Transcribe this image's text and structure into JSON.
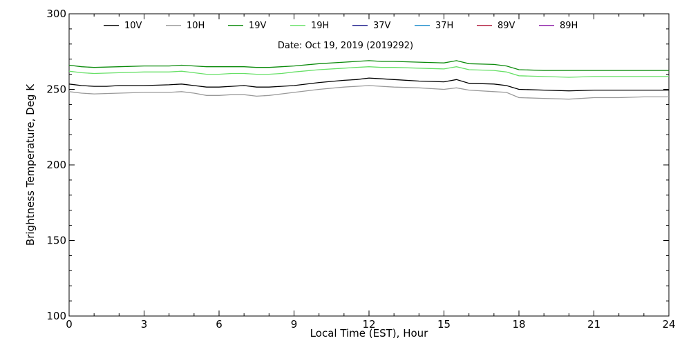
{
  "chart_data": {
    "type": "line",
    "title": "",
    "annotation": "Date: Oct 19, 2019 (2019292)",
    "xlabel": "Local Time (EST), Hour",
    "ylabel": "Brightness Temperature, Deg K",
    "xlim": [
      0,
      24
    ],
    "ylim": [
      100,
      300
    ],
    "xticks": [
      0,
      3,
      6,
      9,
      12,
      15,
      18,
      21,
      24
    ],
    "yticks": [
      100,
      150,
      200,
      250,
      300
    ],
    "grid": false,
    "legend_position": "top",
    "series": [
      {
        "name": "10V",
        "color": "#000000",
        "points": [
          [
            0,
            253.5
          ],
          [
            0.5,
            252.5
          ],
          [
            1,
            252
          ],
          [
            1.5,
            252
          ],
          [
            2,
            252.5
          ],
          [
            3,
            252.5
          ],
          [
            4,
            253
          ],
          [
            4.5,
            253.5
          ],
          [
            5,
            252.5
          ],
          [
            5.5,
            251.5
          ],
          [
            6,
            251.5
          ],
          [
            6.5,
            252
          ],
          [
            7,
            252.5
          ],
          [
            7.5,
            251.5
          ],
          [
            8,
            251.5
          ],
          [
            8.5,
            252
          ],
          [
            9,
            252.5
          ],
          [
            10,
            254.5
          ],
          [
            11,
            256
          ],
          [
            11.5,
            256.5
          ],
          [
            12,
            257.5
          ],
          [
            12.5,
            257
          ],
          [
            13,
            256.5
          ],
          [
            14,
            255.5
          ],
          [
            15,
            255
          ],
          [
            15.5,
            256.5
          ],
          [
            16,
            254
          ],
          [
            17,
            253.5
          ],
          [
            17.5,
            252.5
          ],
          [
            18,
            250
          ],
          [
            19,
            249.5
          ],
          [
            20,
            249
          ],
          [
            21,
            249.5
          ],
          [
            22,
            249.5
          ],
          [
            23,
            249.5
          ],
          [
            24,
            249.5
          ]
        ]
      },
      {
        "name": "10H",
        "color": "#999999",
        "points": [
          [
            0,
            248.5
          ],
          [
            0.5,
            247.5
          ],
          [
            1,
            247
          ],
          [
            2,
            247.5
          ],
          [
            3,
            248
          ],
          [
            4,
            248
          ],
          [
            4.5,
            248.5
          ],
          [
            5,
            247.5
          ],
          [
            5.5,
            246
          ],
          [
            6,
            246
          ],
          [
            6.5,
            246.5
          ],
          [
            7,
            246.5
          ],
          [
            7.5,
            245.5
          ],
          [
            8,
            246
          ],
          [
            8.5,
            247
          ],
          [
            9,
            248
          ],
          [
            10,
            250
          ],
          [
            11,
            251.5
          ],
          [
            11.5,
            252
          ],
          [
            12,
            252.5
          ],
          [
            12.5,
            252
          ],
          [
            13,
            251.5
          ],
          [
            14,
            251
          ],
          [
            15,
            250
          ],
          [
            15.5,
            251
          ],
          [
            16,
            249.5
          ],
          [
            17,
            248.5
          ],
          [
            17.5,
            248
          ],
          [
            18,
            244.5
          ],
          [
            19,
            244
          ],
          [
            20,
            243.5
          ],
          [
            21,
            244.5
          ],
          [
            22,
            244.5
          ],
          [
            23,
            245
          ],
          [
            24,
            245
          ]
        ]
      },
      {
        "name": "19V",
        "color": "#0a8a0a",
        "points": [
          [
            0,
            266
          ],
          [
            0.5,
            265
          ],
          [
            1,
            264.5
          ],
          [
            2,
            265
          ],
          [
            3,
            265.5
          ],
          [
            4,
            265.5
          ],
          [
            4.5,
            266
          ],
          [
            5,
            265.5
          ],
          [
            5.5,
            265
          ],
          [
            6,
            265
          ],
          [
            6.5,
            265
          ],
          [
            7,
            265
          ],
          [
            7.5,
            264.5
          ],
          [
            8,
            264.5
          ],
          [
            8.5,
            265
          ],
          [
            9,
            265.5
          ],
          [
            10,
            267
          ],
          [
            11,
            268
          ],
          [
            11.5,
            268.5
          ],
          [
            12,
            269
          ],
          [
            12.5,
            268.5
          ],
          [
            13,
            268.5
          ],
          [
            14,
            268
          ],
          [
            15,
            267.5
          ],
          [
            15.5,
            269
          ],
          [
            16,
            267
          ],
          [
            17,
            266.5
          ],
          [
            17.5,
            265.5
          ],
          [
            18,
            263
          ],
          [
            19,
            262.5
          ],
          [
            20,
            262.5
          ],
          [
            21,
            262.5
          ],
          [
            22,
            262.5
          ],
          [
            23,
            262.5
          ],
          [
            24,
            262.5
          ]
        ]
      },
      {
        "name": "19H",
        "color": "#66e066",
        "points": [
          [
            0,
            262
          ],
          [
            0.5,
            261
          ],
          [
            1,
            260.5
          ],
          [
            2,
            261
          ],
          [
            3,
            261.5
          ],
          [
            4,
            261.5
          ],
          [
            4.5,
            262
          ],
          [
            5,
            261
          ],
          [
            5.5,
            260
          ],
          [
            6,
            260
          ],
          [
            6.5,
            260.5
          ],
          [
            7,
            260.5
          ],
          [
            7.5,
            260
          ],
          [
            8,
            260
          ],
          [
            8.5,
            260.5
          ],
          [
            9,
            261.5
          ],
          [
            10,
            263
          ],
          [
            11,
            264
          ],
          [
            11.5,
            264.5
          ],
          [
            12,
            265
          ],
          [
            12.5,
            264.5
          ],
          [
            13,
            264.5
          ],
          [
            14,
            264
          ],
          [
            15,
            263.5
          ],
          [
            15.5,
            265
          ],
          [
            16,
            263
          ],
          [
            17,
            262.5
          ],
          [
            17.5,
            261.5
          ],
          [
            18,
            259
          ],
          [
            19,
            258.5
          ],
          [
            20,
            258
          ],
          [
            21,
            258.5
          ],
          [
            22,
            258.5
          ],
          [
            23,
            258.5
          ],
          [
            24,
            258.5
          ]
        ]
      },
      {
        "name": "37V",
        "color": "#1a1a8c",
        "points": []
      },
      {
        "name": "37H",
        "color": "#1a8ccc",
        "points": []
      },
      {
        "name": "89V",
        "color": "#b01a3c",
        "points": []
      },
      {
        "name": "89H",
        "color": "#8c1aa6",
        "points": []
      }
    ]
  }
}
